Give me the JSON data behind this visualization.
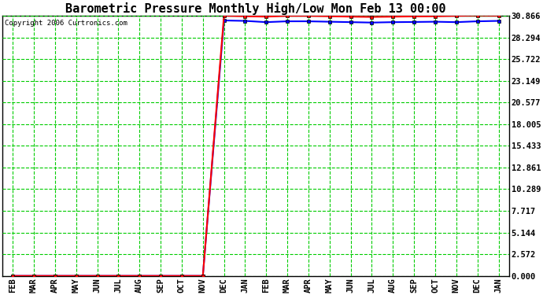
{
  "title": "Barometric Pressure Monthly High/Low Mon Feb 13 00:00",
  "copyright": "Copyright 2006 Curtronics.com",
  "background_color": "#ffffff",
  "plot_bg_color": "#ffffff",
  "grid_color": "#00cc00",
  "x_labels": [
    "FEB",
    "MAR",
    "APR",
    "MAY",
    "JUN",
    "JUL",
    "AUG",
    "SEP",
    "OCT",
    "NOV",
    "DEC",
    "JAN",
    "FEB",
    "MAR",
    "APR",
    "MAY",
    "JUN",
    "JUL",
    "AUG",
    "SEP",
    "OCT",
    "NOV",
    "DEC",
    "JAN"
  ],
  "yticks": [
    0.0,
    2.572,
    5.144,
    7.717,
    10.289,
    12.861,
    15.433,
    18.005,
    20.577,
    23.149,
    25.722,
    28.294,
    30.866
  ],
  "ymax": 30.866,
  "ymin": 0.0,
  "red_line_color": "#ff0000",
  "blue_line_color": "#0000ff",
  "red_values": [
    0.0,
    0.0,
    0.0,
    0.0,
    0.0,
    0.0,
    0.0,
    0.0,
    0.0,
    0.0,
    30.866,
    30.8,
    30.75,
    30.85,
    30.85,
    30.8,
    30.75,
    30.72,
    30.75,
    30.78,
    30.8,
    30.85,
    30.9,
    30.866
  ],
  "blue_values": [
    0.0,
    0.0,
    0.0,
    0.0,
    0.0,
    0.0,
    0.0,
    0.0,
    0.0,
    0.0,
    30.3,
    30.25,
    30.1,
    30.2,
    30.2,
    30.15,
    30.1,
    30.05,
    30.1,
    30.12,
    30.15,
    30.1,
    30.2,
    30.25
  ],
  "title_fontsize": 11,
  "tick_fontsize": 7.5,
  "copyright_fontsize": 6.5
}
